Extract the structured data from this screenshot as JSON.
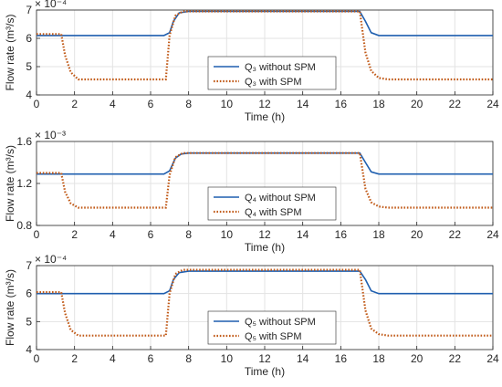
{
  "chart_data": [
    {
      "type": "line",
      "ylabel": "Flow rate (m³/s)",
      "xlabel": "Time (h)",
      "exponent": "× 10⁻⁴",
      "xlim": [
        0,
        24
      ],
      "ylim": [
        4,
        7
      ],
      "xticks": [
        0,
        2,
        4,
        6,
        8,
        10,
        12,
        14,
        16,
        18,
        20,
        22,
        24
      ],
      "yticks": [
        4,
        5,
        6,
        7
      ],
      "grid": true,
      "legend_position": "lower-center",
      "series": [
        {
          "name": "Q₃ without SPM",
          "color": "#1f5faf",
          "style": "solid",
          "x": [
            0,
            6.7,
            7.0,
            7.2,
            7.5,
            8,
            17.0,
            17.3,
            17.6,
            18,
            24
          ],
          "y": [
            6.1,
            6.1,
            6.2,
            6.6,
            6.9,
            6.95,
            6.95,
            6.6,
            6.2,
            6.1,
            6.1
          ]
        },
        {
          "name": "Q₃ with SPM",
          "color": "#c15a18",
          "style": "dotted",
          "x": [
            0,
            1.3,
            1.5,
            1.8,
            2.2,
            6.8,
            7.0,
            7.3,
            7.7,
            17.0,
            17.3,
            17.6,
            18.0,
            18.5,
            24
          ],
          "y": [
            6.15,
            6.15,
            5.4,
            4.8,
            4.55,
            4.55,
            6.1,
            6.8,
            6.95,
            6.95,
            5.5,
            4.85,
            4.6,
            4.55,
            4.55
          ]
        }
      ]
    },
    {
      "type": "line",
      "ylabel": "Flow rate (m³/s)",
      "xlabel": "Time (h)",
      "exponent": "× 10⁻³",
      "xlim": [
        0,
        24
      ],
      "ylim": [
        0.8,
        1.6
      ],
      "xticks": [
        0,
        2,
        4,
        6,
        8,
        10,
        12,
        14,
        16,
        18,
        20,
        22,
        24
      ],
      "yticks": [
        0.8,
        1.2,
        1.6
      ],
      "ytick_labels": [
        "0.8",
        "1.2",
        "1.6"
      ],
      "grid": true,
      "legend_position": "lower-center",
      "series": [
        {
          "name": "Q₄ without SPM",
          "color": "#1f5faf",
          "style": "solid",
          "x": [
            0,
            6.7,
            7.0,
            7.3,
            7.6,
            8,
            17.0,
            17.3,
            17.6,
            18,
            24
          ],
          "y": [
            1.29,
            1.29,
            1.32,
            1.44,
            1.48,
            1.49,
            1.49,
            1.4,
            1.31,
            1.29,
            1.29
          ]
        },
        {
          "name": "Q₄ with SPM",
          "color": "#c15a18",
          "style": "dotted",
          "x": [
            0,
            1.3,
            1.5,
            1.8,
            2.2,
            6.8,
            7.0,
            7.3,
            7.7,
            17.0,
            17.3,
            17.6,
            18.0,
            18.5,
            24
          ],
          "y": [
            1.3,
            1.3,
            1.12,
            1.01,
            0.97,
            0.97,
            1.28,
            1.45,
            1.49,
            1.49,
            1.15,
            1.02,
            0.98,
            0.97,
            0.97
          ]
        }
      ]
    },
    {
      "type": "line",
      "ylabel": "Flow rate (m³/s)",
      "xlabel": "Time (h)",
      "exponent": "× 10⁻⁴",
      "xlim": [
        0,
        24
      ],
      "ylim": [
        4,
        7
      ],
      "xticks": [
        0,
        2,
        4,
        6,
        8,
        10,
        12,
        14,
        16,
        18,
        20,
        22,
        24
      ],
      "yticks": [
        4,
        5,
        6,
        7
      ],
      "grid": true,
      "legend_position": "lower-center",
      "series": [
        {
          "name": "Q₅ without SPM",
          "color": "#1f5faf",
          "style": "solid",
          "x": [
            0,
            6.7,
            7.0,
            7.2,
            7.5,
            8,
            17.0,
            17.3,
            17.6,
            18,
            24
          ],
          "y": [
            6.0,
            6.0,
            6.1,
            6.5,
            6.75,
            6.8,
            6.8,
            6.5,
            6.1,
            6.0,
            6.0
          ]
        },
        {
          "name": "Q₅ with SPM",
          "color": "#c15a18",
          "style": "dotted",
          "x": [
            0,
            1.3,
            1.5,
            1.8,
            2.2,
            6.8,
            7.0,
            7.3,
            7.7,
            17.0,
            17.3,
            17.6,
            18.0,
            18.5,
            24
          ],
          "y": [
            6.05,
            6.05,
            5.3,
            4.7,
            4.5,
            4.5,
            6.0,
            6.7,
            6.85,
            6.85,
            5.4,
            4.75,
            4.55,
            4.5,
            4.5
          ]
        }
      ]
    }
  ]
}
